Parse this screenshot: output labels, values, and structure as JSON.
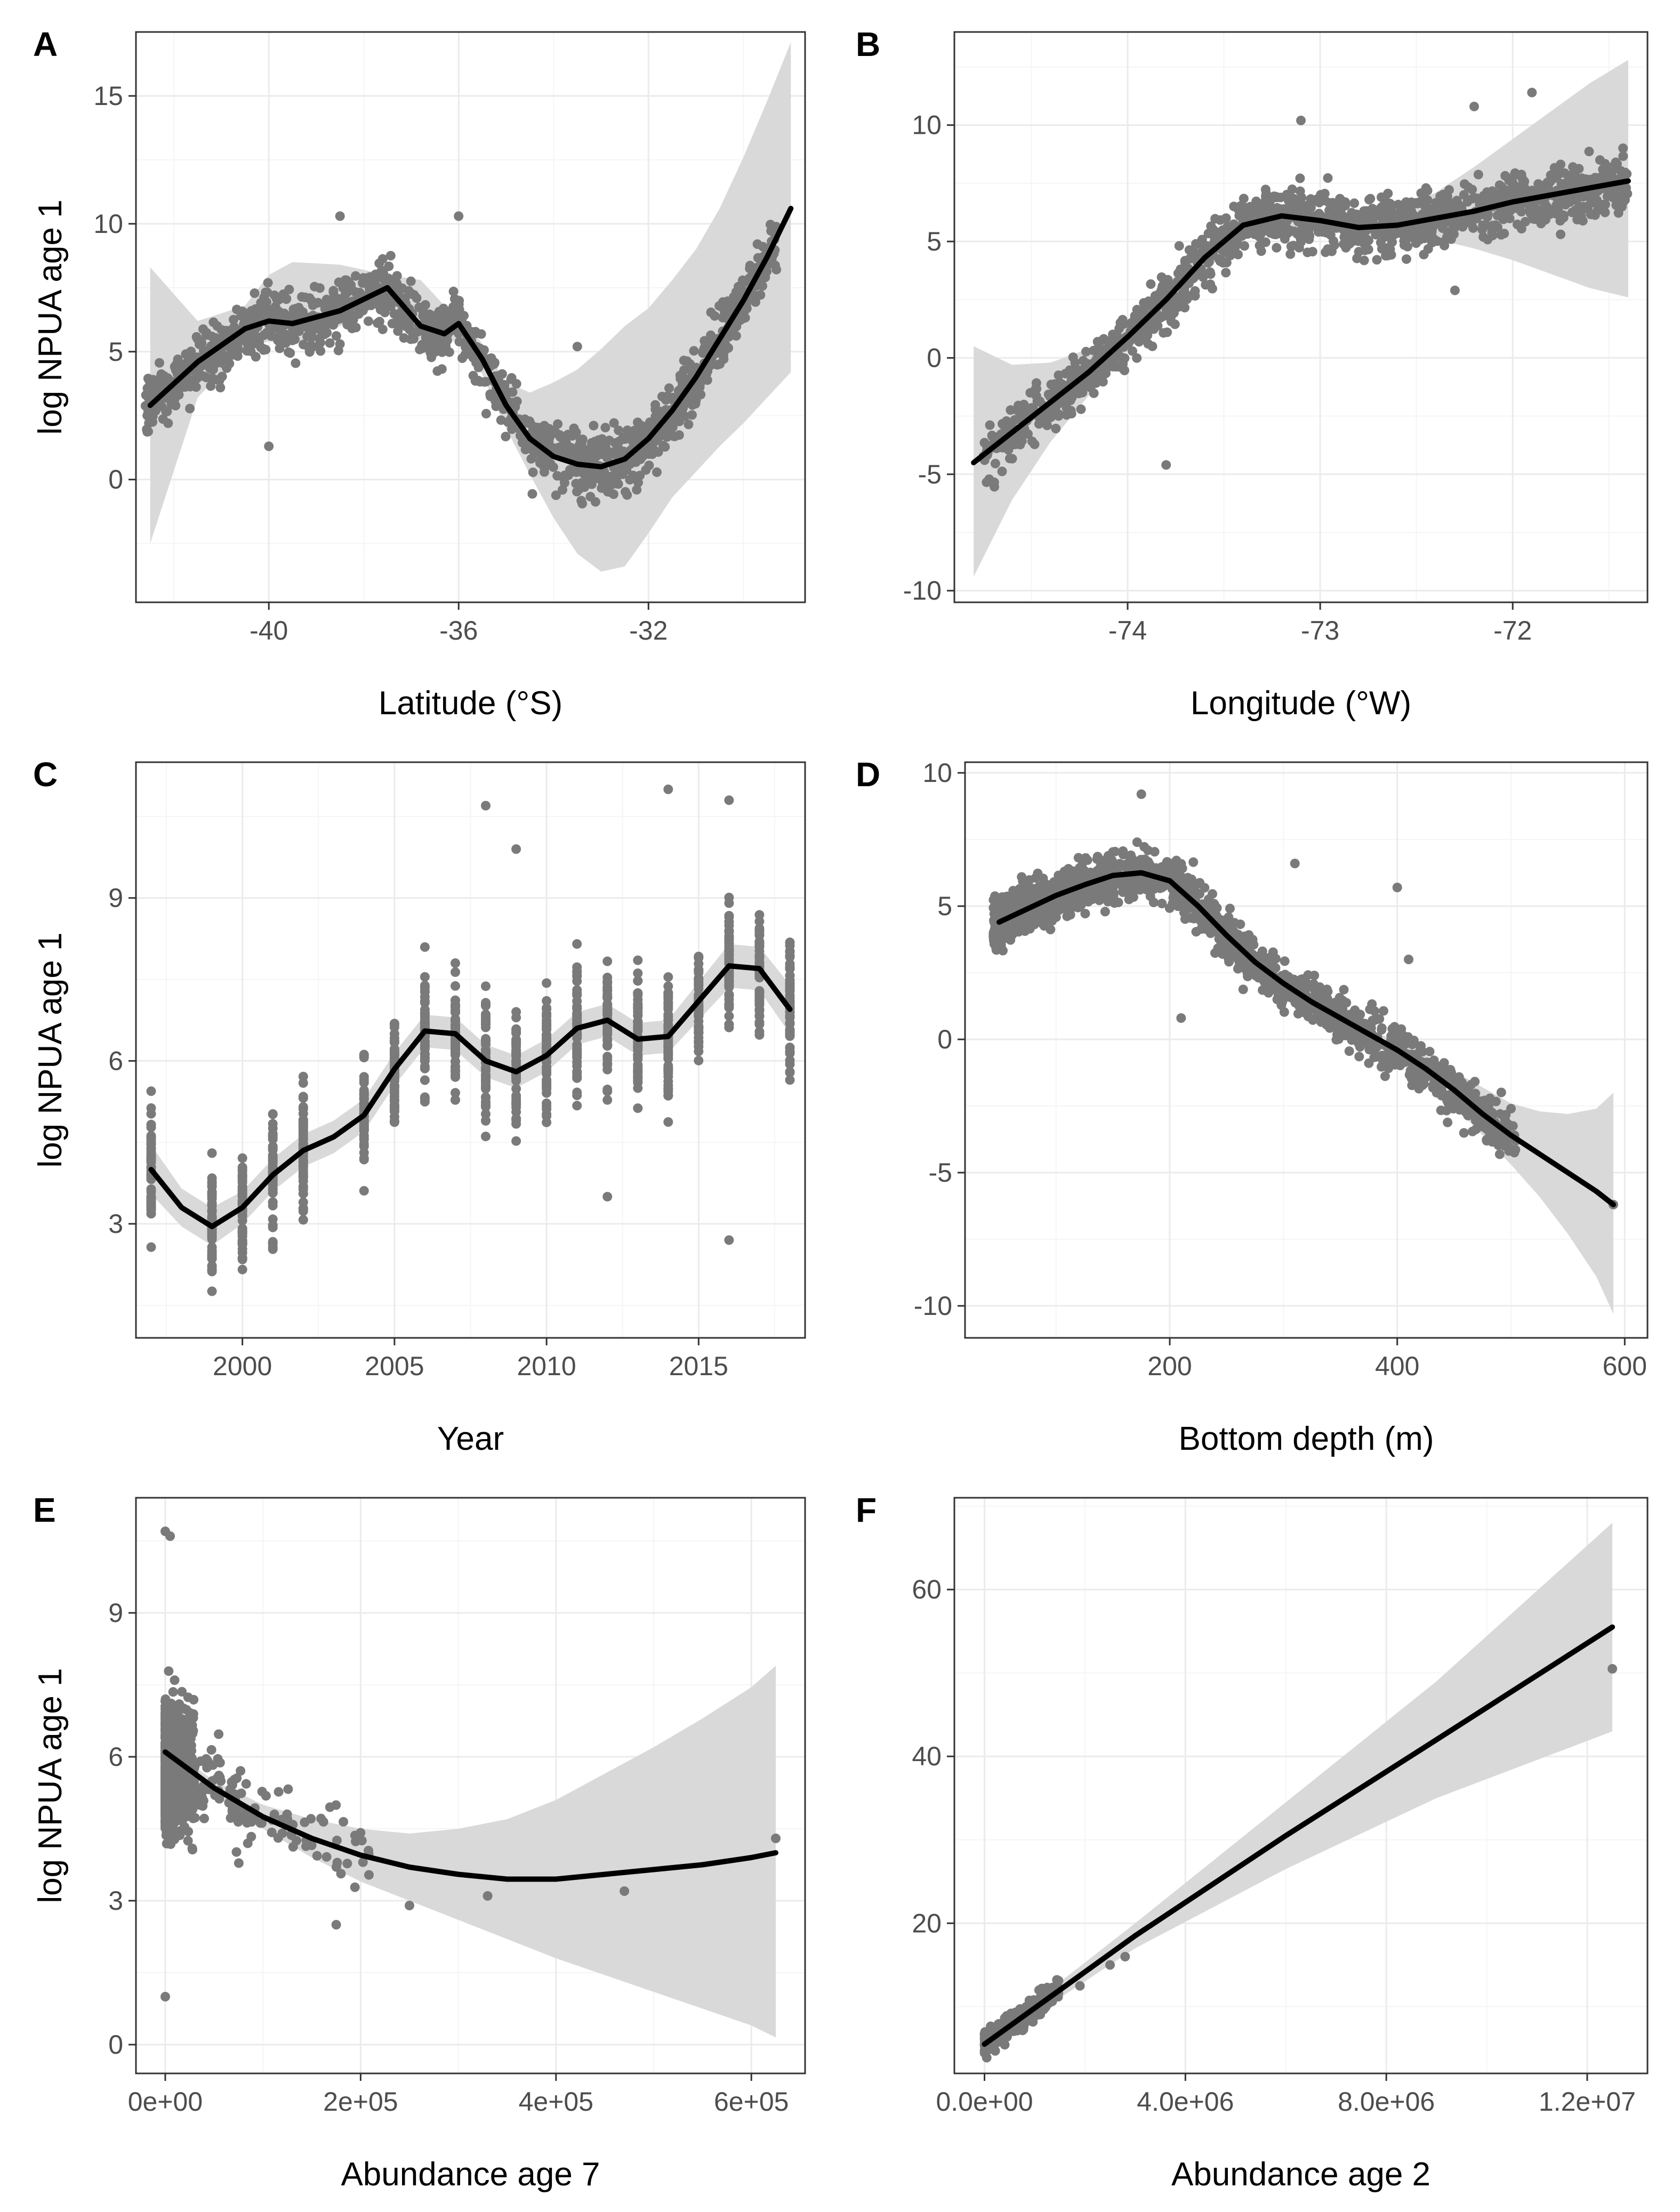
{
  "chart_data": [
    {
      "panel": "A",
      "type": "scatter",
      "xlabel": "Latitude (°S)",
      "ylabel": "log NPUA age 1",
      "xlim": [
        -42.8,
        -28.7
      ],
      "ylim": [
        -4.8,
        17.5
      ],
      "xticks": [
        -40,
        -36,
        -32
      ],
      "xtick_labels": [
        "-40",
        "-36",
        "-32"
      ],
      "yticks": [
        0,
        5,
        10,
        15
      ],
      "ytick_labels": [
        "0",
        "5",
        "10",
        "15"
      ],
      "smooth": {
        "x": [
          -42.5,
          -41.5,
          -40.5,
          -40.0,
          -39.5,
          -38.5,
          -37.5,
          -36.8,
          -36.3,
          -36.0,
          -35.5,
          -35.0,
          -34.5,
          -34.0,
          -33.5,
          -33.0,
          -32.5,
          -32.0,
          -31.5,
          -31.0,
          -30.5,
          -30.0,
          -29.5,
          -29.0
        ],
        "y": [
          2.9,
          4.6,
          5.9,
          6.2,
          6.1,
          6.6,
          7.5,
          6.0,
          5.7,
          6.1,
          4.7,
          2.9,
          1.6,
          0.9,
          0.6,
          0.5,
          0.8,
          1.6,
          2.7,
          4.0,
          5.5,
          7.0,
          8.7,
          10.6
        ],
        "lower": [
          -2.5,
          3.2,
          5.2,
          5.4,
          5.3,
          6.0,
          7.0,
          5.4,
          5.1,
          5.6,
          4.1,
          2.0,
          0.2,
          -1.5,
          -2.9,
          -3.6,
          -3.4,
          -2.1,
          -0.7,
          0.3,
          1.3,
          2.2,
          3.2,
          4.2
        ],
        "upper": [
          8.3,
          6.2,
          6.8,
          8.0,
          8.5,
          8.4,
          8.0,
          7.8,
          6.8,
          6.6,
          5.3,
          3.8,
          3.4,
          3.8,
          4.3,
          5.1,
          6.0,
          6.7,
          7.8,
          9.0,
          10.6,
          12.6,
          14.8,
          17.1
        ]
      }
    },
    {
      "panel": "B",
      "type": "scatter",
      "xlabel": "Longitude (°W)",
      "ylabel": "",
      "xlim": [
        -74.9,
        -71.3
      ],
      "ylim": [
        -10.5,
        14.0
      ],
      "xticks": [
        -74,
        -73,
        -72
      ],
      "xtick_labels": [
        "-74",
        "-73",
        "-72"
      ],
      "yticks": [
        -10,
        -5,
        0,
        5,
        10
      ],
      "ytick_labels": [
        "-10",
        "-5",
        "0",
        "5",
        "10"
      ],
      "smooth": {
        "x": [
          -74.8,
          -74.6,
          -74.4,
          -74.2,
          -74.0,
          -73.8,
          -73.6,
          -73.4,
          -73.2,
          -73.0,
          -72.8,
          -72.6,
          -72.4,
          -72.2,
          -72.0,
          -71.8,
          -71.6,
          -71.4
        ],
        "y": [
          -4.5,
          -3.2,
          -1.9,
          -0.6,
          0.9,
          2.5,
          4.3,
          5.7,
          6.1,
          5.9,
          5.6,
          5.7,
          6.0,
          6.3,
          6.7,
          7.0,
          7.3,
          7.6
        ],
        "lower": [
          -9.4,
          -6.1,
          -3.6,
          -1.6,
          0.3,
          1.9,
          3.7,
          5.2,
          5.7,
          5.5,
          5.2,
          5.2,
          5.1,
          4.7,
          4.2,
          3.6,
          3.0,
          2.6
        ],
        "upper": [
          0.5,
          -0.3,
          -0.2,
          0.4,
          1.5,
          3.1,
          4.9,
          6.2,
          6.5,
          6.3,
          6.0,
          6.4,
          7.1,
          8.2,
          9.4,
          10.6,
          11.8,
          12.8
        ]
      }
    },
    {
      "panel": "C",
      "type": "scatter",
      "xlabel": "Year",
      "ylabel": "log NPUA age 1",
      "xlim": [
        1996.5,
        2018.5
      ],
      "ylim": [
        0.9,
        11.5
      ],
      "xticks": [
        2000,
        2005,
        2010,
        2015
      ],
      "xtick_labels": [
        "2000",
        "2005",
        "2010",
        "2015"
      ],
      "yticks": [
        3,
        6,
        9
      ],
      "ytick_labels": [
        "3",
        "6",
        "9"
      ],
      "smooth": {
        "x": [
          1997,
          1998,
          1999,
          2000,
          2001,
          2002,
          2003,
          2004,
          2005,
          2006,
          2007,
          2008,
          2009,
          2010,
          2011,
          2012,
          2013,
          2014,
          2015,
          2016,
          2017,
          2018
        ],
        "y": [
          4.0,
          3.3,
          2.95,
          3.3,
          3.9,
          4.35,
          4.6,
          5.0,
          5.85,
          6.55,
          6.5,
          6.0,
          5.8,
          6.1,
          6.6,
          6.75,
          6.4,
          6.45,
          7.1,
          7.75,
          7.7,
          6.95
        ],
        "lower": [
          3.55,
          2.95,
          2.6,
          3.0,
          3.6,
          4.05,
          4.3,
          4.7,
          5.55,
          6.25,
          6.2,
          5.7,
          5.5,
          5.8,
          6.3,
          6.45,
          6.1,
          6.15,
          6.75,
          7.35,
          7.3,
          6.5
        ],
        "upper": [
          4.45,
          3.65,
          3.3,
          3.6,
          4.2,
          4.65,
          4.9,
          5.3,
          6.15,
          6.85,
          6.8,
          6.3,
          6.1,
          6.4,
          6.9,
          7.05,
          6.7,
          6.75,
          7.45,
          8.15,
          8.1,
          7.4
        ]
      }
    },
    {
      "panel": "D",
      "type": "scatter",
      "xlabel": "Bottom depth (m)",
      "ylabel": "",
      "xlim": [
        20,
        620
      ],
      "ylim": [
        -11.2,
        10.4
      ],
      "xticks": [
        200,
        400,
        600
      ],
      "xtick_labels": [
        "200",
        "400",
        "600"
      ],
      "yticks": [
        -10,
        -5,
        0,
        5,
        10
      ],
      "ytick_labels": [
        "-10",
        "-5",
        "0",
        "5",
        "10"
      ],
      "smooth": {
        "x": [
          50,
          75,
          100,
          125,
          150,
          175,
          200,
          225,
          250,
          275,
          300,
          325,
          350,
          375,
          400,
          425,
          450,
          475,
          500,
          525,
          550,
          575,
          590
        ],
        "y": [
          4.4,
          4.9,
          5.4,
          5.8,
          6.15,
          6.25,
          5.95,
          5.0,
          3.9,
          2.9,
          2.1,
          1.4,
          0.8,
          0.2,
          -0.4,
          -1.1,
          -1.9,
          -2.8,
          -3.6,
          -4.3,
          -5.0,
          -5.7,
          -6.2
        ],
        "lower": [
          3.9,
          4.5,
          5.1,
          5.6,
          5.95,
          6.05,
          5.75,
          4.8,
          3.7,
          2.7,
          1.9,
          1.2,
          0.6,
          0.0,
          -0.7,
          -1.5,
          -2.5,
          -3.6,
          -4.7,
          -5.9,
          -7.3,
          -8.9,
          -10.3
        ],
        "upper": [
          4.9,
          5.3,
          5.7,
          6.0,
          6.35,
          6.45,
          6.15,
          5.2,
          4.1,
          3.1,
          2.3,
          1.6,
          1.0,
          0.4,
          -0.1,
          -0.6,
          -1.2,
          -1.8,
          -2.4,
          -2.7,
          -2.8,
          -2.6,
          -2.0
        ]
      }
    },
    {
      "panel": "E",
      "type": "scatter",
      "xlabel": "Abundance age 7",
      "ylabel": "log NPUA age 1",
      "xlim": [
        -30000,
        655000
      ],
      "ylim": [
        -0.6,
        11.4
      ],
      "xticks": [
        0,
        200000,
        400000,
        600000
      ],
      "xtick_labels": [
        "0e+00",
        "2e+05",
        "4e+05",
        "6e+05"
      ],
      "yticks": [
        0,
        3,
        6,
        9
      ],
      "ytick_labels": [
        "0",
        "3",
        "6",
        "9"
      ],
      "smooth": {
        "x": [
          0,
          50000,
          100000,
          150000,
          200000,
          250000,
          300000,
          350000,
          400000,
          450000,
          500000,
          550000,
          600000,
          625000
        ],
        "y": [
          6.1,
          5.35,
          4.75,
          4.3,
          3.95,
          3.7,
          3.55,
          3.45,
          3.45,
          3.55,
          3.65,
          3.75,
          3.9,
          4.0
        ],
        "lower": [
          5.95,
          5.2,
          4.5,
          3.9,
          3.4,
          3.0,
          2.6,
          2.2,
          1.8,
          1.45,
          1.1,
          0.75,
          0.4,
          0.15
        ],
        "upper": [
          6.25,
          5.5,
          5.0,
          4.7,
          4.5,
          4.4,
          4.5,
          4.7,
          5.1,
          5.65,
          6.2,
          6.8,
          7.45,
          7.9
        ]
      }
    },
    {
      "panel": "F",
      "type": "scatter",
      "xlabel": "Abundance age 2",
      "ylabel": "",
      "xlim": [
        -600000,
        13200000
      ],
      "ylim": [
        2.0,
        71.0
      ],
      "xticks": [
        0,
        4000000,
        8000000,
        12000000
      ],
      "xtick_labels": [
        "0.0e+00",
        "4.0e+06",
        "8.0e+06",
        "1.2e+07"
      ],
      "yticks": [
        20,
        40,
        60
      ],
      "ytick_labels": [
        "20",
        "40",
        "60"
      ],
      "smooth": {
        "x": [
          0,
          3000000,
          6000000,
          9000000,
          12500000
        ],
        "y": [
          5.5,
          18.5,
          30.5,
          42.0,
          55.5
        ],
        "lower": [
          5.1,
          17.0,
          26.5,
          35.0,
          43.0
        ],
        "upper": [
          5.9,
          20.0,
          34.5,
          49.0,
          68.0
        ]
      }
    }
  ]
}
